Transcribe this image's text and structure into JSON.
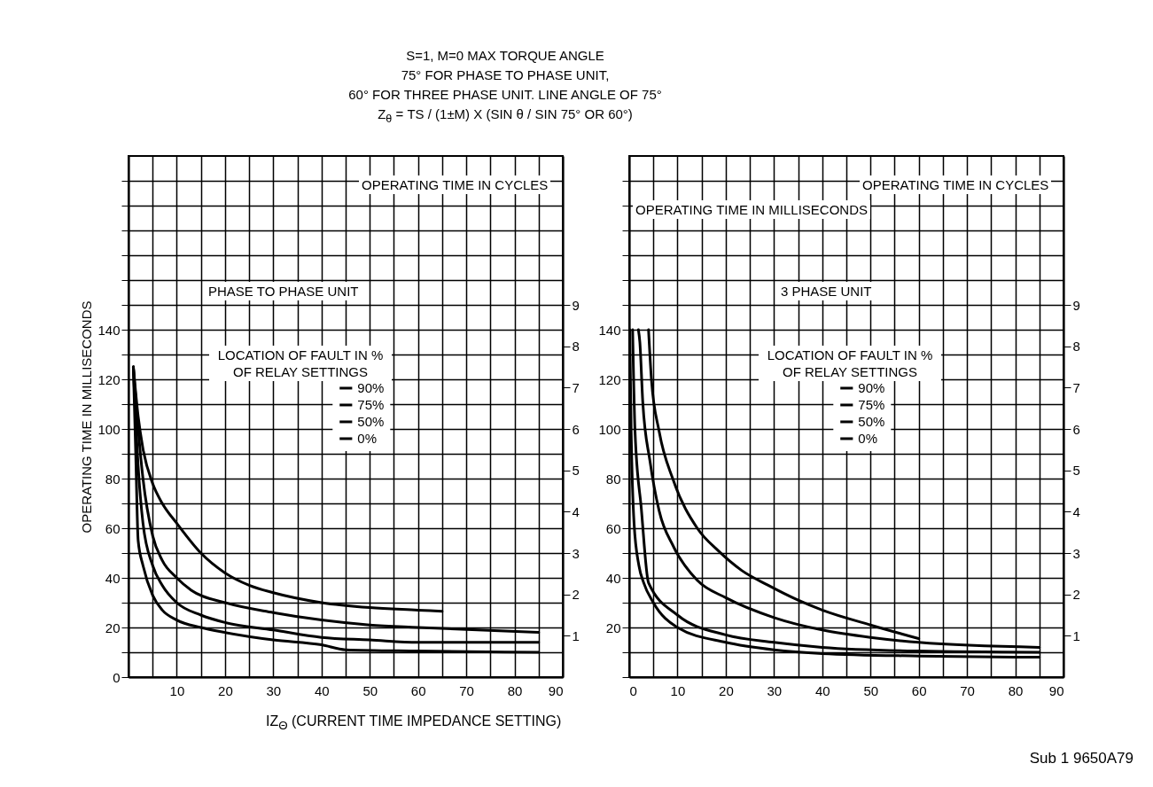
{
  "chart_data": [
    {
      "type": "line",
      "title": "PHASE TO PHASE UNIT",
      "annotations": [
        "S=1, M=0  MAX TORQUE ANGLE",
        "75° FOR PHASE TO PHASE UNIT,",
        "60° FOR THREE PHASE UNIT. LINE ANGLE OF 75°",
        "Z$_{θ}$ = TS / (1±M) X (SIN θ / SIN 75° OR 60°)"
      ],
      "xlabel": "IZ$_{Θ}$  (CURRENT  TIME  IMPEDANCE  SETTING)",
      "ylabel": "OPERATING TIME IN MILLISECONDS",
      "y2label": "OPERATING TIME IN CYCLES",
      "legend_title": "LOCATION OF FAULT IN % OF RELAY SETTINGS",
      "legend": "top",
      "grid": true,
      "xlim": [
        0,
        90
      ],
      "xticks": [
        {
          "value": 0,
          "label": null
        },
        {
          "value": 5,
          "label": null
        },
        10,
        {
          "value": 15,
          "label": null
        },
        20,
        {
          "value": 25,
          "label": null
        },
        30,
        {
          "value": 35,
          "label": null
        },
        40,
        {
          "value": 45,
          "label": null
        },
        50,
        {
          "value": 55,
          "label": null
        },
        60,
        {
          "value": 65,
          "label": null
        },
        70,
        {
          "value": 75,
          "label": null
        },
        80,
        {
          "value": 85,
          "label": null
        },
        90
      ],
      "ylim": [
        0,
        210
      ],
      "yticks": [
        0,
        {
          "value": 10,
          "label": null
        },
        20,
        {
          "value": 30,
          "label": null
        },
        40,
        {
          "value": 50,
          "label": null
        },
        60,
        {
          "value": 70,
          "label": null
        },
        80,
        {
          "value": 90,
          "label": null
        },
        100,
        {
          "value": 110,
          "label": null
        },
        120,
        {
          "value": 130,
          "label": null
        },
        140,
        {
          "value": 150,
          "label": null
        },
        {
          "value": 160,
          "label": null
        },
        {
          "value": 170,
          "label": null
        },
        {
          "value": 180,
          "label": null
        },
        {
          "value": 190,
          "label": null
        },
        {
          "value": 200,
          "label": null
        }
      ],
      "y2lim": [
        0,
        12.6
      ],
      "y2ticks": [
        1,
        2,
        3,
        4,
        5,
        6,
        7,
        8,
        9
      ],
      "series": [
        {
          "name": "90%",
          "color": "#000000",
          "x": [
            1,
            2,
            3,
            5,
            7,
            10,
            15,
            20,
            25,
            30,
            40,
            50,
            60,
            65
          ],
          "values": [
            125,
            105,
            92,
            78,
            70,
            62,
            50,
            42,
            37,
            34,
            30,
            28,
            27,
            26.5
          ]
        },
        {
          "name": "75%",
          "color": "#000000",
          "x": [
            1,
            2,
            3,
            5,
            7,
            10,
            13,
            20,
            30,
            40,
            50,
            60,
            85
          ],
          "values": [
            125,
            100,
            80,
            57,
            47,
            40,
            35,
            30,
            26,
            23,
            21,
            20,
            18
          ]
        },
        {
          "name": "50%",
          "color": "#000000",
          "x": [
            1,
            2,
            3,
            5,
            7,
            10,
            15,
            20,
            30,
            40,
            50,
            60,
            85
          ],
          "values": [
            125,
            85,
            62,
            45,
            37,
            30,
            25,
            22,
            19,
            16,
            15,
            14,
            14
          ]
        },
        {
          "name": "0%",
          "color": "#000000",
          "x": [
            1,
            1.5,
            2,
            3,
            5,
            7,
            10,
            15,
            20,
            30,
            40,
            45,
            60,
            85
          ],
          "values": [
            125,
            90,
            55,
            45,
            33,
            27,
            23,
            20,
            18,
            15,
            13,
            11,
            10.5,
            10
          ]
        }
      ]
    },
    {
      "type": "line",
      "title": "3 PHASE UNIT",
      "annotations": [
        "Sub 1  9650A79"
      ],
      "ylabel": "OPERATING TIME IN MILLISECONDS",
      "y2label": "OPERATING TIME IN CYCLES",
      "legend_title": "LOCATION OF FAULT IN % OF RELAY SETTINGS",
      "legend": "top",
      "grid": true,
      "xlim": [
        0,
        90
      ],
      "xticks": [
        0,
        {
          "value": 5,
          "label": null
        },
        10,
        {
          "value": 15,
          "label": null
        },
        20,
        {
          "value": 25,
          "label": null
        },
        30,
        {
          "value": 35,
          "label": null
        },
        40,
        {
          "value": 45,
          "label": null
        },
        50,
        {
          "value": 55,
          "label": null
        },
        60,
        {
          "value": 65,
          "label": null
        },
        70,
        {
          "value": 75,
          "label": null
        },
        80,
        {
          "value": 85,
          "label": null
        },
        90
      ],
      "ylim": [
        0,
        210
      ],
      "yticks": [
        {
          "value": 0,
          "label": null
        },
        {
          "value": 10,
          "label": null
        },
        20,
        {
          "value": 30,
          "label": null
        },
        40,
        {
          "value": 50,
          "label": null
        },
        60,
        {
          "value": 70,
          "label": null
        },
        80,
        {
          "value": 90,
          "label": null
        },
        100,
        {
          "value": 110,
          "label": null
        },
        120,
        {
          "value": 130,
          "label": null
        },
        140,
        {
          "value": 150,
          "label": null
        },
        {
          "value": 160,
          "label": null
        },
        {
          "value": 170,
          "label": null
        },
        {
          "value": 180,
          "label": null
        },
        {
          "value": 190,
          "label": null
        },
        {
          "value": 200,
          "label": null
        }
      ],
      "y2lim": [
        0,
        12.6
      ],
      "y2ticks": [
        1,
        2,
        3,
        4,
        5,
        6,
        7,
        8,
        9
      ],
      "series": [
        {
          "name": "90%",
          "color": "#000000",
          "x": [
            4,
            4.6,
            6.2,
            9.2,
            14.1,
            18.4,
            23.3,
            28.8,
            35,
            40,
            50,
            60
          ],
          "values": [
            140,
            120,
            99,
            79,
            60,
            51,
            43,
            37,
            31,
            27,
            21,
            15.5
          ]
        },
        {
          "name": "75%",
          "color": "#000000",
          "x": [
            1.9,
            2.2,
            2.8,
            4.3,
            6.2,
            9.2,
            14.1,
            20,
            30,
            40,
            50,
            60,
            85
          ],
          "values": [
            140,
            135,
            111,
            87,
            67,
            52.5,
            39,
            32,
            24,
            19,
            16,
            14,
            12
          ]
        },
        {
          "name": "50%",
          "color": "#000000",
          "x": [
            0.7,
            1.2,
            2.5,
            4,
            10,
            20,
            30,
            40,
            60,
            85
          ],
          "values": [
            140,
            99,
            68,
            38,
            25,
            17,
            14,
            12,
            10.5,
            10
          ]
        },
        {
          "name": "0%",
          "color": "#000000",
          "x": [
            0.1,
            0.4,
            1,
            2,
            3,
            5,
            10,
            20,
            30,
            40,
            60,
            85
          ],
          "values": [
            140,
            99,
            62,
            45,
            38,
            30,
            20,
            14,
            11,
            9.5,
            8.5,
            8
          ]
        }
      ]
    }
  ]
}
